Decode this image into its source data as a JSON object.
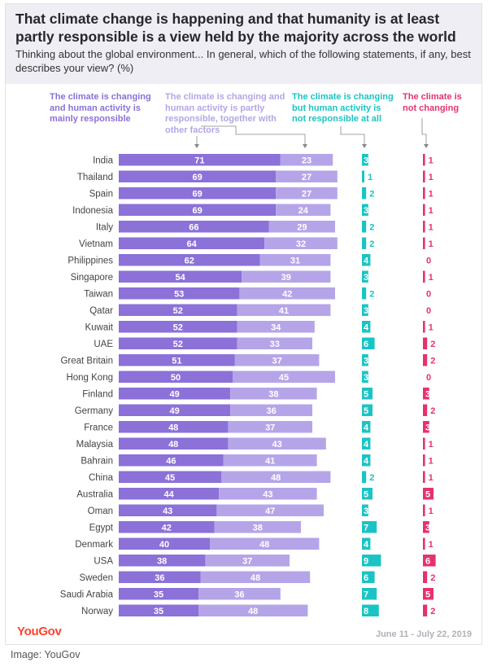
{
  "title": "That climate change is happening and that humanity is at least partly responsible is a view held by the majority across the world",
  "subtitle": "Thinking about the global environment... In general, which of the following statements, if any, best describes your view? (%)",
  "brand": "YouGov",
  "date_range": "June 11 - July 22, 2019",
  "credit": "Image: YouGov",
  "colors": {
    "mainly": "#8b71d8",
    "partly": "#b5a5e8",
    "not_responsible": "#1bc4c4",
    "not_changing": "#e5326f",
    "brand": "#ff412c"
  },
  "legend": [
    {
      "label": "The climate is changing and human activity is mainly responsible",
      "color": "#8b71d8"
    },
    {
      "label": "The climate is changing and human activity is partly responsible, together with other factors",
      "color": "#b5a5e8"
    },
    {
      "label": "The climate is changing but human activity is not responsible at all",
      "color": "#1bc4c4"
    },
    {
      "label": "The climate is not changing",
      "color": "#e5326f"
    }
  ],
  "chart_data": {
    "type": "bar",
    "orientation": "horizontal",
    "stacked": true,
    "categories": [
      "India",
      "Thailand",
      "Spain",
      "Indonesia",
      "Italy",
      "Vietnam",
      "Philippines",
      "Singapore",
      "Taiwan",
      "Qatar",
      "Kuwait",
      "UAE",
      "Great Britain",
      "Hong Kong",
      "Finland",
      "Germany",
      "France",
      "Malaysia",
      "Bahrain",
      "China",
      "Australia",
      "Oman",
      "Egypt",
      "Denmark",
      "USA",
      "Sweden",
      "Saudi Arabia",
      "Norway"
    ],
    "series": [
      {
        "name": "The climate is changing and human activity is mainly responsible",
        "values": [
          71,
          69,
          69,
          69,
          66,
          64,
          62,
          54,
          53,
          52,
          52,
          52,
          51,
          50,
          49,
          49,
          48,
          48,
          46,
          45,
          44,
          43,
          42,
          40,
          38,
          36,
          35,
          35
        ]
      },
      {
        "name": "The climate is changing and human activity is partly responsible, together with other factors",
        "values": [
          23,
          27,
          27,
          24,
          29,
          32,
          31,
          39,
          42,
          41,
          34,
          33,
          37,
          45,
          38,
          36,
          37,
          43,
          41,
          48,
          43,
          47,
          38,
          48,
          37,
          48,
          36,
          48
        ]
      },
      {
        "name": "The climate is changing but human activity is not responsible at all",
        "values": [
          3,
          1,
          2,
          3,
          2,
          2,
          4,
          3,
          2,
          3,
          4,
          6,
          3,
          3,
          5,
          5,
          4,
          4,
          4,
          2,
          5,
          3,
          7,
          4,
          9,
          6,
          7,
          8
        ]
      },
      {
        "name": "The climate is not changing",
        "values": [
          1,
          1,
          1,
          1,
          1,
          1,
          0,
          1,
          0,
          0,
          1,
          2,
          2,
          0,
          3,
          2,
          3,
          1,
          1,
          1,
          5,
          1,
          3,
          1,
          6,
          2,
          5,
          2
        ]
      }
    ],
    "unit": "%"
  }
}
